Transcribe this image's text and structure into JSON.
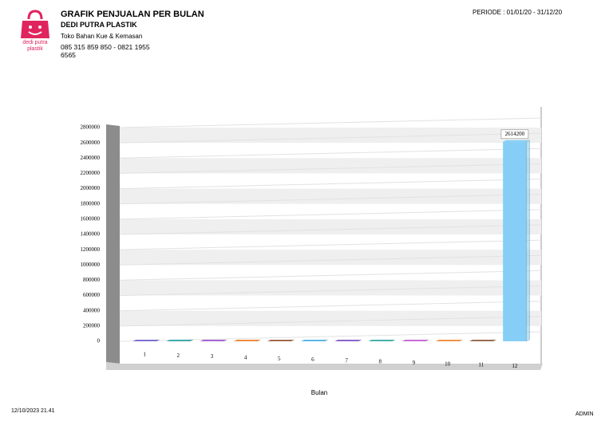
{
  "header": {
    "logo_text": "dedi putra plastik",
    "title": "GRAFIK PENJUALAN PER BULAN",
    "company": "DEDI PUTRA PLASTIK",
    "tagline": "Toko Bahan Kue & Kemasan",
    "phone": "085 315 859 850 - 0821 1955 6565",
    "period": "PERIODE : 01/01/20 - 31/12/20"
  },
  "chart_data": {
    "type": "bar",
    "x_label": "Bulan",
    "categories": [
      "1",
      "2",
      "3",
      "4",
      "5",
      "6",
      "7",
      "8",
      "9",
      "10",
      "11",
      "12"
    ],
    "values": [
      0,
      0,
      0,
      0,
      0,
      0,
      0,
      0,
      0,
      0,
      0,
      2614200
    ],
    "colors": [
      "#7b6fd0",
      "#3fa9a9",
      "#a765d6",
      "#f08a3c",
      "#a0694a",
      "#5bb6e6",
      "#8a63c9",
      "#43b0a8",
      "#c86ad6",
      "#f39043",
      "#9a6b50",
      "#86cef5"
    ],
    "ylim": [
      0,
      2800000
    ],
    "yticks": [
      0,
      200000,
      400000,
      600000,
      800000,
      1000000,
      1200000,
      1400000,
      1600000,
      1800000,
      2000000,
      2200000,
      2400000,
      2600000,
      2800000
    ],
    "grid": true
  },
  "footer": {
    "timestamp": "12/10/2023 21.41",
    "user": "ADMIN"
  }
}
